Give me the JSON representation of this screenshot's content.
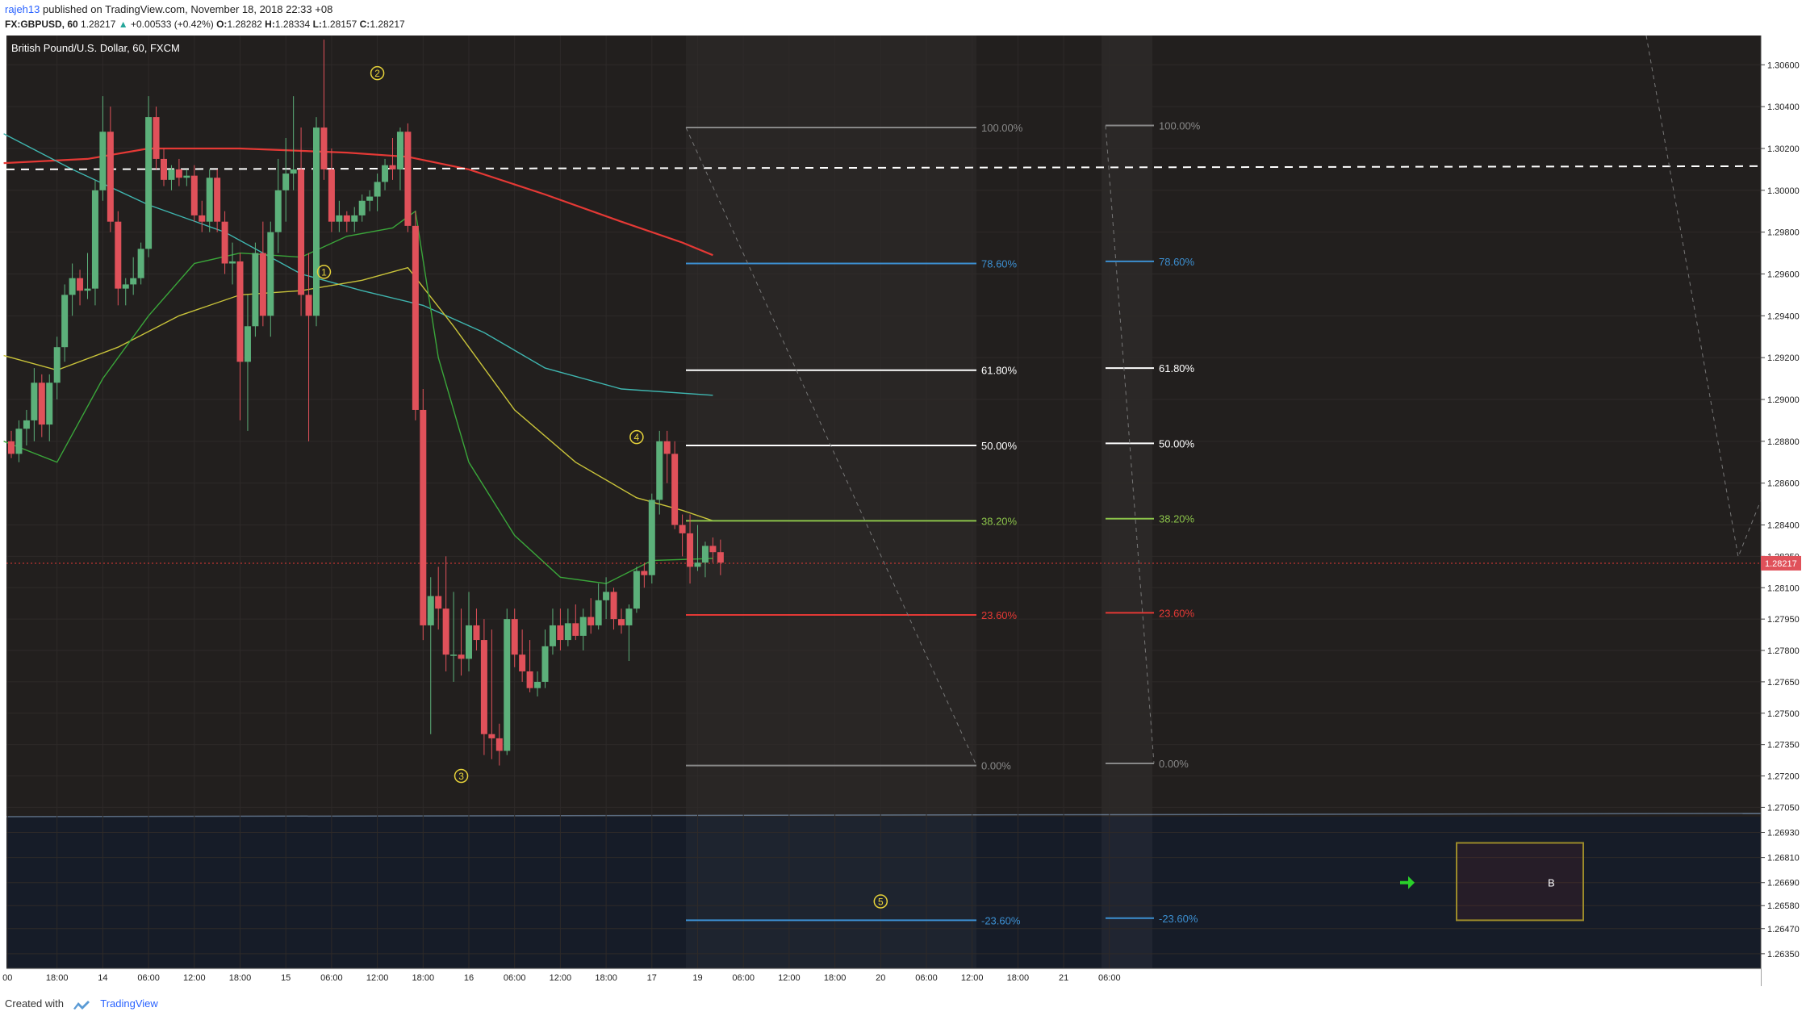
{
  "header": {
    "author": "rajeh13",
    "published_text": "published on TradingView.com, November 18, 2018 22:33 +08",
    "symbol": "FX:GBPUSD, 60",
    "last": "1.28217",
    "change": "+0.00533 (+0.42%)",
    "o_label": "O:",
    "o": "1.28282",
    "h_label": "H:",
    "h": "1.28334",
    "l_label": "L:",
    "l": "1.28157",
    "c_label": "C:",
    "c": "1.28217"
  },
  "footer": {
    "created_with": "Created with",
    "brand": "TradingView"
  },
  "chart_data": {
    "type": "candlestick",
    "title": "British Pound/U.S. Dollar, 60, FXCM",
    "ylim": [
      1.2628,
      1.3074
    ],
    "price_ticks": [
      "1.30600",
      "1.30400",
      "1.30200",
      "1.30000",
      "1.29800",
      "1.29600",
      "1.29400",
      "1.29200",
      "1.29000",
      "1.28800",
      "1.28600",
      "1.28400",
      "1.28250",
      "1.28100",
      "1.27950",
      "1.27800",
      "1.27650",
      "1.27500",
      "1.27350",
      "1.27200",
      "1.27050",
      "1.26930",
      "1.26810",
      "1.26690",
      "1.26580",
      "1.26470",
      "1.26350"
    ],
    "time_ticks": [
      {
        "label": "00",
        "i": -0.5
      },
      {
        "label": "18:00",
        "i": 6
      },
      {
        "label": "14",
        "i": 12
      },
      {
        "label": "06:00",
        "i": 18
      },
      {
        "label": "12:00",
        "i": 24
      },
      {
        "label": "18:00",
        "i": 30
      },
      {
        "label": "15",
        "i": 36
      },
      {
        "label": "06:00",
        "i": 42
      },
      {
        "label": "12:00",
        "i": 48
      },
      {
        "label": "18:00",
        "i": 54
      },
      {
        "label": "16",
        "i": 60
      },
      {
        "label": "06:00",
        "i": 66
      },
      {
        "label": "12:00",
        "i": 72
      },
      {
        "label": "18:00",
        "i": 78
      },
      {
        "label": "17",
        "i": 84
      },
      {
        "label": "19",
        "i": 90
      },
      {
        "label": "06:00",
        "i": 96
      },
      {
        "label": "12:00",
        "i": 102
      },
      {
        "label": "18:00",
        "i": 108
      },
      {
        "label": "20",
        "i": 114
      },
      {
        "label": "06:00",
        "i": 120
      },
      {
        "label": "12:00",
        "i": 126
      },
      {
        "label": "18:00",
        "i": 132
      },
      {
        "label": "21",
        "i": 138
      },
      {
        "label": "06:00",
        "i": 144
      }
    ],
    "candles": [
      [
        1.288,
        1.2885,
        1.2872,
        1.2874
      ],
      [
        1.2874,
        1.289,
        1.287,
        1.2886
      ],
      [
        1.2886,
        1.2895,
        1.2878,
        1.289
      ],
      [
        1.289,
        1.2915,
        1.288,
        1.2908
      ],
      [
        1.2908,
        1.2912,
        1.2882,
        1.2888
      ],
      [
        1.2888,
        1.2912,
        1.288,
        1.2908
      ],
      [
        1.2908,
        1.293,
        1.29,
        1.2925
      ],
      [
        1.2925,
        1.2955,
        1.2918,
        1.295
      ],
      [
        1.295,
        1.2965,
        1.294,
        1.2958
      ],
      [
        1.2958,
        1.2962,
        1.2945,
        1.2952
      ],
      [
        1.2952,
        1.297,
        1.2948,
        1.2953
      ],
      [
        1.2953,
        1.3005,
        1.2945,
        1.3
      ],
      [
        1.3,
        1.3045,
        1.2995,
        1.3028
      ],
      [
        1.3028,
        1.304,
        1.298,
        1.2985
      ],
      [
        1.2985,
        1.299,
        1.2945,
        1.2953
      ],
      [
        1.2953,
        1.2958,
        1.2945,
        1.2955
      ],
      [
        1.2955,
        1.2968,
        1.295,
        1.2958
      ],
      [
        1.2958,
        1.2975,
        1.2955,
        1.2972
      ],
      [
        1.2972,
        1.3045,
        1.2968,
        1.3035
      ],
      [
        1.3035,
        1.304,
        1.301,
        1.3015
      ],
      [
        1.3015,
        1.302,
        1.3002,
        1.3005
      ],
      [
        1.3005,
        1.3012,
        1.3,
        1.301
      ],
      [
        1.301,
        1.3015,
        1.3002,
        1.3006
      ],
      [
        1.3006,
        1.301,
        1.3002,
        1.3007
      ],
      [
        1.3007,
        1.3012,
        1.2985,
        1.2988
      ],
      [
        1.2988,
        1.2995,
        1.298,
        1.2985
      ],
      [
        1.2985,
        1.301,
        1.298,
        1.3006
      ],
      [
        1.3006,
        1.301,
        1.298,
        1.2985
      ],
      [
        1.2985,
        1.299,
        1.296,
        1.2965
      ],
      [
        1.2965,
        1.2975,
        1.2955,
        1.2966
      ],
      [
        1.2966,
        1.297,
        1.289,
        1.2918
      ],
      [
        1.2918,
        1.295,
        1.2885,
        1.2935
      ],
      [
        1.2935,
        1.2975,
        1.293,
        1.297
      ],
      [
        1.297,
        1.2985,
        1.2935,
        1.294
      ],
      [
        1.294,
        1.2985,
        1.293,
        1.298
      ],
      [
        1.298,
        1.3015,
        1.297,
        1.3
      ],
      [
        1.3,
        1.3025,
        1.2985,
        1.3008
      ],
      [
        1.3008,
        1.3045,
        1.3,
        1.301
      ],
      [
        1.301,
        1.303,
        1.294,
        1.295
      ],
      [
        1.295,
        1.297,
        1.288,
        1.294
      ],
      [
        1.294,
        1.3035,
        1.2935,
        1.303
      ],
      [
        1.303,
        1.3072,
        1.3005,
        1.301
      ],
      [
        1.301,
        1.302,
        1.298,
        1.2985
      ],
      [
        1.2985,
        1.2995,
        1.298,
        1.2988
      ],
      [
        1.2988,
        1.299,
        1.298,
        1.2985
      ],
      [
        1.2985,
        1.2992,
        1.298,
        1.2988
      ],
      [
        1.2988,
        1.2998,
        1.2985,
        1.2995
      ],
      [
        1.2995,
        1.3,
        1.299,
        1.2997
      ],
      [
        1.2997,
        1.3008,
        1.299,
        1.3004
      ],
      [
        1.3004,
        1.3015,
        1.3,
        1.3012
      ],
      [
        1.3012,
        1.3025,
        1.3005,
        1.301
      ],
      [
        1.301,
        1.303,
        1.3,
        1.3028
      ],
      [
        1.3028,
        1.3032,
        1.298,
        1.2983
      ],
      [
        1.2983,
        1.299,
        1.289,
        1.2895
      ],
      [
        1.2895,
        1.2905,
        1.2785,
        1.2792
      ],
      [
        1.2792,
        1.2815,
        1.274,
        1.2806
      ],
      [
        1.2806,
        1.282,
        1.279,
        1.28
      ],
      [
        1.28,
        1.2825,
        1.277,
        1.2778
      ],
      [
        1.2778,
        1.2808,
        1.2765,
        1.2778
      ],
      [
        1.2778,
        1.28,
        1.2768,
        1.2776
      ],
      [
        1.2776,
        1.2808,
        1.277,
        1.2792
      ],
      [
        1.2792,
        1.28,
        1.278,
        1.2785
      ],
      [
        1.2785,
        1.2795,
        1.273,
        1.274
      ],
      [
        1.274,
        1.279,
        1.2728,
        1.2738
      ],
      [
        1.2738,
        1.2745,
        1.2725,
        1.2732
      ],
      [
        1.2732,
        1.28,
        1.273,
        1.2795
      ],
      [
        1.2795,
        1.28,
        1.2772,
        1.2778
      ],
      [
        1.2778,
        1.279,
        1.2765,
        1.277
      ],
      [
        1.277,
        1.2785,
        1.276,
        1.2762
      ],
      [
        1.2762,
        1.277,
        1.2758,
        1.2765
      ],
      [
        1.2765,
        1.279,
        1.2762,
        1.2782
      ],
      [
        1.2782,
        1.28,
        1.2778,
        1.2792
      ],
      [
        1.2792,
        1.28,
        1.278,
        1.2785
      ],
      [
        1.2785,
        1.28,
        1.2782,
        1.2793
      ],
      [
        1.2793,
        1.2802,
        1.2785,
        1.2787
      ],
      [
        1.2787,
        1.28,
        1.278,
        1.2796
      ],
      [
        1.2796,
        1.2805,
        1.2788,
        1.2792
      ],
      [
        1.2792,
        1.2812,
        1.279,
        1.2804
      ],
      [
        1.2804,
        1.2815,
        1.2795,
        1.2808
      ],
      [
        1.2808,
        1.281,
        1.279,
        1.2795
      ],
      [
        1.2795,
        1.28,
        1.2788,
        1.2792
      ],
      [
        1.2792,
        1.2802,
        1.2775,
        1.28
      ],
      [
        1.28,
        1.282,
        1.2798,
        1.2818
      ],
      [
        1.2818,
        1.2822,
        1.281,
        1.2816
      ],
      [
        1.2816,
        1.2855,
        1.2812,
        1.2852
      ],
      [
        1.2852,
        1.2885,
        1.2845,
        1.288
      ],
      [
        1.288,
        1.2885,
        1.286,
        1.2874
      ],
      [
        1.2874,
        1.288,
        1.2838,
        1.284
      ],
      [
        1.284,
        1.2845,
        1.2825,
        1.2836
      ],
      [
        1.2836,
        1.2845,
        1.2812,
        1.282
      ],
      [
        1.282,
        1.284,
        1.2818,
        1.2822
      ],
      [
        1.2822,
        1.2832,
        1.2815,
        1.283
      ],
      [
        1.283,
        1.2834,
        1.2822,
        1.2827
      ],
      [
        1.2827,
        1.2833,
        1.2816,
        1.2822
      ]
    ],
    "overlays": {
      "sma200_red": [
        [
          -1,
          1.3013
        ],
        [
          10,
          1.3015
        ],
        [
          18,
          1.302
        ],
        [
          30,
          1.302
        ],
        [
          44,
          1.3018
        ],
        [
          52,
          1.3016
        ],
        [
          60,
          1.301
        ],
        [
          70,
          1.2998
        ],
        [
          80,
          1.2985
        ],
        [
          88,
          1.2975
        ],
        [
          92,
          1.2969
        ]
      ],
      "sma100_cyan": [
        [
          -1,
          1.3027
        ],
        [
          8,
          1.301
        ],
        [
          18,
          1.2993
        ],
        [
          28,
          1.298
        ],
        [
          38,
          1.296
        ],
        [
          46,
          1.2952
        ],
        [
          54,
          1.2945
        ],
        [
          62,
          1.2932
        ],
        [
          70,
          1.2915
        ],
        [
          80,
          1.2905
        ],
        [
          92,
          1.2902
        ]
      ],
      "ema50_yellow": [
        [
          -1,
          1.2921
        ],
        [
          6,
          1.2914
        ],
        [
          14,
          1.2925
        ],
        [
          22,
          1.294
        ],
        [
          30,
          1.295
        ],
        [
          38,
          1.2952
        ],
        [
          46,
          1.2957
        ],
        [
          52,
          1.2963
        ],
        [
          58,
          1.2935
        ],
        [
          66,
          1.2895
        ],
        [
          74,
          1.287
        ],
        [
          82,
          1.2853
        ],
        [
          88,
          1.2847
        ],
        [
          92,
          1.2842
        ]
      ],
      "ema20_green": [
        [
          -1,
          1.288
        ],
        [
          6,
          1.287
        ],
        [
          12,
          1.291
        ],
        [
          18,
          1.294
        ],
        [
          24,
          1.2965
        ],
        [
          30,
          1.297
        ],
        [
          38,
          1.2968
        ],
        [
          44,
          1.2978
        ],
        [
          50,
          1.2982
        ],
        [
          53,
          1.299
        ],
        [
          56,
          1.292
        ],
        [
          60,
          1.287
        ],
        [
          66,
          1.2835
        ],
        [
          72,
          1.2815
        ],
        [
          78,
          1.2812
        ],
        [
          84,
          1.2823
        ],
        [
          92,
          1.2824
        ]
      ]
    },
    "dashed_level": 1.301,
    "current_price": "1.28217",
    "current_price_value": 1.28217,
    "fib_levels": [
      "100.00%",
      "78.60%",
      "61.80%",
      "50.00%",
      "38.20%",
      "23.60%",
      "0.00%",
      "-23.60%"
    ],
    "fib_colors": [
      "#888888",
      "#3c8fd1",
      "#ffffff",
      "#ffffff",
      "#8bc34a",
      "#e53935",
      "#888888",
      "#3c8fd1"
    ],
    "fib_prices_left": [
      1.303,
      1.2965,
      1.2914,
      1.2878,
      1.2842,
      1.2797,
      1.2725,
      1.2651
    ],
    "fib_prices_right": [
      1.3031,
      1.2966,
      1.2915,
      1.2879,
      1.2843,
      1.2798,
      1.2726,
      1.2652
    ],
    "wave_labels": [
      "1",
      "2",
      "3",
      "4",
      "5"
    ],
    "wave_points": [
      [
        41,
        1.2961
      ],
      [
        48,
        1.3056
      ],
      [
        59,
        1.272
      ],
      [
        82,
        1.2882
      ],
      [
        114,
        1.266
      ]
    ],
    "box_label": "B",
    "box_price_range": [
      1.2688,
      1.2651
    ]
  }
}
